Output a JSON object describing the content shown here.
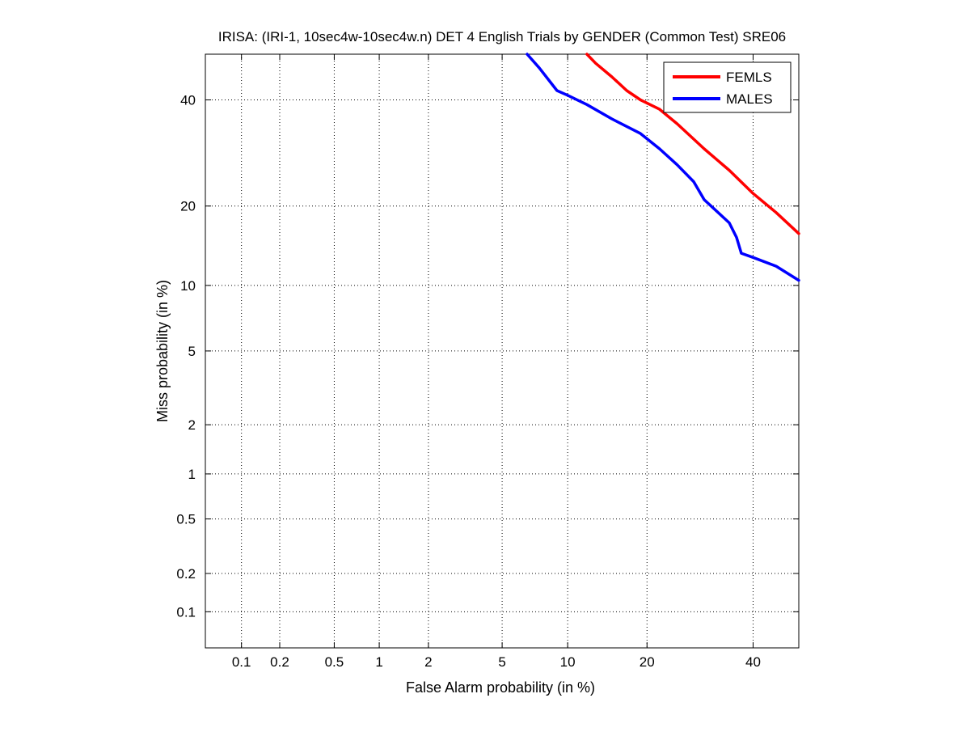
{
  "chart_data": {
    "type": "line",
    "title": "IRISA: (IRI-1, 10sec4w-10sec4w.n) DET 4 English Trials by GENDER (Common Test) SRE06",
    "xlabel": "False Alarm probability (in %)",
    "ylabel": "Miss probability (in %)",
    "x_scale": "normal-deviate (probit)",
    "y_scale": "normal-deviate (probit)",
    "xlim": [
      0.05,
      50
    ],
    "ylim": [
      0.05,
      50
    ],
    "x_ticks": [
      0.1,
      0.2,
      0.5,
      1,
      2,
      5,
      10,
      20,
      40
    ],
    "x_tick_labels": [
      "0.1",
      "0.2",
      "0.5",
      "1",
      "2",
      "5",
      "10",
      "20",
      "40"
    ],
    "y_ticks": [
      0.1,
      0.2,
      0.5,
      1,
      2,
      5,
      10,
      20,
      40
    ],
    "y_tick_labels": [
      "0.1",
      "0.2",
      "0.5",
      "1",
      "2",
      "5",
      "10",
      "20",
      "40"
    ],
    "grid": true,
    "legend_position": "top-right",
    "series": [
      {
        "name": "FEMLS",
        "color": "#ff0000",
        "x": [
          12,
          13,
          15,
          17,
          19,
          22,
          25,
          30,
          35,
          40,
          45,
          50
        ],
        "y": [
          50,
          48,
          45,
          42,
          40,
          38,
          35,
          30,
          26,
          22,
          19,
          16
        ]
      },
      {
        "name": "MALES",
        "color": "#0000ff",
        "x": [
          6.6,
          7.5,
          9,
          10,
          12,
          15,
          19,
          22,
          25,
          28,
          30,
          35,
          36.5,
          37.5,
          40,
          45,
          50
        ],
        "y": [
          50,
          47,
          42,
          41,
          39,
          36,
          33,
          30,
          27,
          24,
          21,
          17.5,
          15.5,
          13.5,
          13,
          12,
          10.5
        ]
      }
    ]
  }
}
